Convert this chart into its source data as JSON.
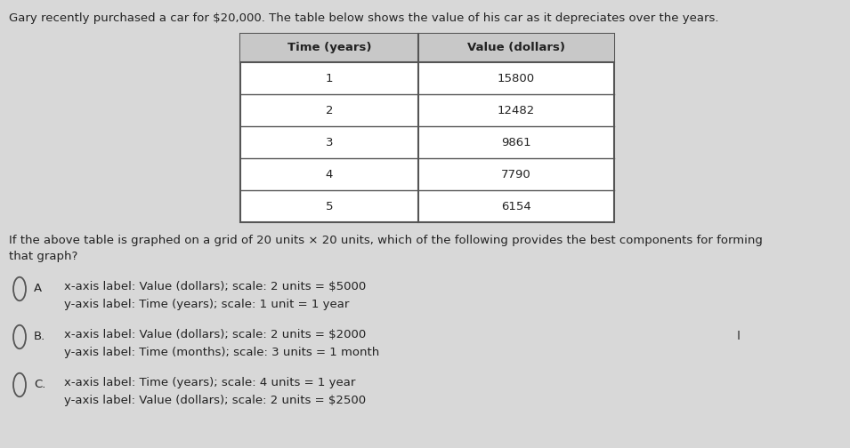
{
  "background_color": "#d8d8d8",
  "title_text": "Gary recently purchased a car for $20,000. The table below shows the value of his car as it depreciates over the years.",
  "table_headers": [
    "Time (years)",
    "Value (dollars)"
  ],
  "table_data": [
    [
      "1",
      "15800"
    ],
    [
      "2",
      "12482"
    ],
    [
      "3",
      "9861"
    ],
    [
      "4",
      "7790"
    ],
    [
      "5",
      "6154"
    ]
  ],
  "question_text": "If the above table is graphed on a grid of 20 units × 20 units, which of the following provides the best components for forming\nthat graph?",
  "options": [
    {
      "label": "A",
      "line1": "x-axis label: Value (dollars); scale: 2 units = $5000",
      "line2": "y-axis label: Time (years); scale: 1 unit = 1 year"
    },
    {
      "label": "B.",
      "line1": "x-axis label: Value (dollars); scale: 2 units = $2000",
      "line2": "y-axis label: Time (months); scale: 3 units = 1 month"
    },
    {
      "label": "C.",
      "line1": "x-axis label: Time (years); scale: 4 units = 1 year",
      "line2": "y-axis label: Value (dollars); scale: 2 units = $2500"
    }
  ],
  "font_size_title": 9.5,
  "font_size_table_header": 9.5,
  "font_size_table_data": 9.5,
  "font_size_question": 9.5,
  "font_size_options": 9.5,
  "text_color": "#222222",
  "table_border_color": "#555555",
  "table_bg": "#f0f0f0",
  "circle_color": "#555555",
  "cursor_color": "#333333"
}
